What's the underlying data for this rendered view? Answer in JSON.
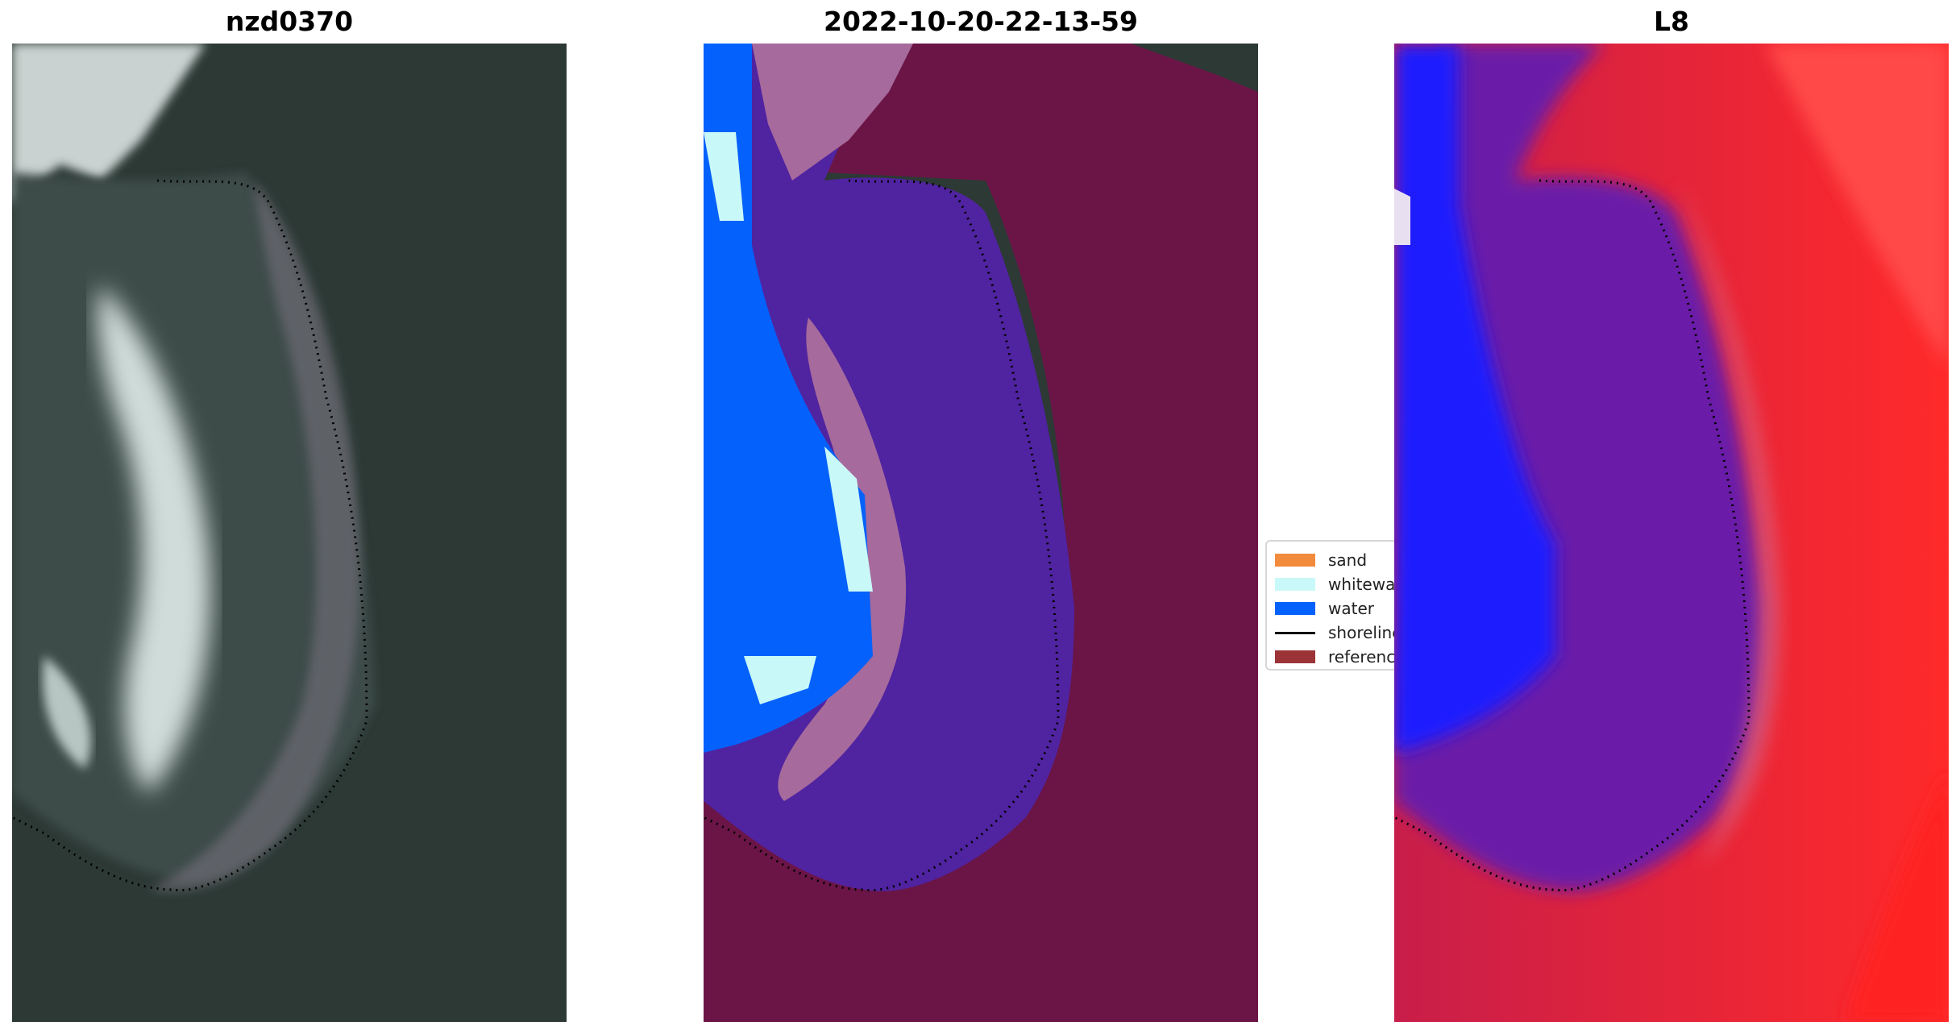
{
  "panels": [
    {
      "title": "nzd0370"
    },
    {
      "title": "2022-10-20-22-13-59"
    },
    {
      "title": "L8"
    }
  ],
  "legend": {
    "items": [
      {
        "label": "sand",
        "color": "#f38b3c",
        "kind": "patch"
      },
      {
        "label": "whitewater",
        "color": "#c9f8f8",
        "kind": "patch"
      },
      {
        "label": "water",
        "color": "#0561fb",
        "kind": "patch"
      },
      {
        "label": "shoreline",
        "color": "#000000",
        "kind": "line"
      },
      {
        "label": "reference",
        "color": "#9b3337",
        "kind": "patch"
      }
    ]
  },
  "colors": {
    "background": "#ffffff",
    "rgb_dark_vegetation": "#2b3a36",
    "rgb_surf_white": "#dfe8e6",
    "class_water": "#0561fb",
    "class_whitewater": "#c9f8f8",
    "class_sand_overlay": "#a66a9c",
    "class_purple_overlay": "#5023a0",
    "class_reference_overlay": "#6b1547",
    "index_blue": "#1a1aff",
    "index_purple": "#6a1aa8",
    "index_red": "#c81e4a",
    "index_bright_red": "#ff2a2a"
  }
}
